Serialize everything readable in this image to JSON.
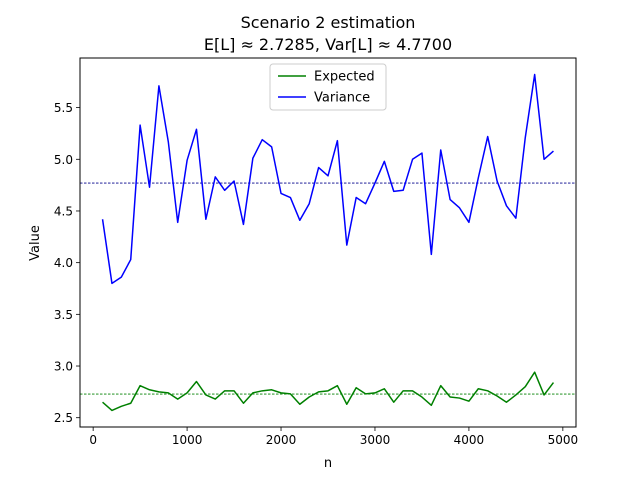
{
  "chart_data": {
    "type": "line",
    "title": "Scenario 2 estimation",
    "subtitle": "E[L] ≈ 2.7285, Var[L] ≈ 4.7700",
    "xlabel": "n",
    "ylabel": "Value",
    "xlim": [
      -140,
      5140
    ],
    "ylim": [
      2.41,
      5.98
    ],
    "xticks": [
      0,
      1000,
      2000,
      3000,
      4000,
      5000
    ],
    "yticks": [
      2.5,
      3.0,
      3.5,
      4.0,
      4.5,
      5.0,
      5.5
    ],
    "xtick_labels": [
      "0",
      "1000",
      "2000",
      "3000",
      "4000",
      "5000"
    ],
    "ytick_labels": [
      "2.5",
      "3.0",
      "3.5",
      "4.0",
      "4.5",
      "5.0",
      "5.5"
    ],
    "grid": false,
    "legend_position": "top-center",
    "x": [
      100,
      200,
      300,
      400,
      500,
      600,
      700,
      800,
      900,
      1000,
      1100,
      1200,
      1300,
      1400,
      1500,
      1600,
      1700,
      1800,
      1900,
      2000,
      2100,
      2200,
      2300,
      2400,
      2500,
      2600,
      2700,
      2800,
      2900,
      3000,
      3100,
      3200,
      3300,
      3400,
      3500,
      3600,
      3700,
      3800,
      3900,
      4000,
      4100,
      4200,
      4300,
      4400,
      4500,
      4600,
      4700,
      4800,
      4900
    ],
    "series": [
      {
        "name": "Expected",
        "color": "#008000",
        "values": [
          2.65,
          2.57,
          2.61,
          2.64,
          2.81,
          2.77,
          2.75,
          2.74,
          2.68,
          2.74,
          2.85,
          2.72,
          2.68,
          2.76,
          2.76,
          2.64,
          2.74,
          2.76,
          2.77,
          2.74,
          2.73,
          2.63,
          2.7,
          2.75,
          2.76,
          2.81,
          2.63,
          2.79,
          2.73,
          2.74,
          2.78,
          2.65,
          2.76,
          2.76,
          2.7,
          2.62,
          2.81,
          2.7,
          2.69,
          2.66,
          2.78,
          2.76,
          2.71,
          2.65,
          2.72,
          2.8,
          2.94,
          2.72,
          2.84
        ]
      },
      {
        "name": "Variance",
        "color": "#0000ff",
        "values": [
          4.42,
          3.8,
          3.86,
          4.03,
          5.33,
          4.73,
          5.71,
          5.17,
          4.39,
          4.99,
          5.29,
          4.42,
          4.83,
          4.7,
          4.79,
          4.37,
          5.01,
          5.19,
          5.12,
          4.67,
          4.63,
          4.41,
          4.57,
          4.92,
          4.84,
          5.18,
          4.17,
          4.63,
          4.57,
          4.77,
          4.98,
          4.69,
          4.7,
          5.0,
          5.06,
          4.08,
          5.09,
          4.61,
          4.53,
          4.39,
          4.82,
          5.22,
          4.79,
          4.55,
          4.43,
          5.21,
          5.82,
          5.0,
          5.08
        ]
      }
    ],
    "reference_lines": [
      {
        "value": 2.7285,
        "color": "#008000",
        "style": "dashed"
      },
      {
        "value": 4.77,
        "color": "#00008b",
        "style": "dashed"
      }
    ]
  }
}
